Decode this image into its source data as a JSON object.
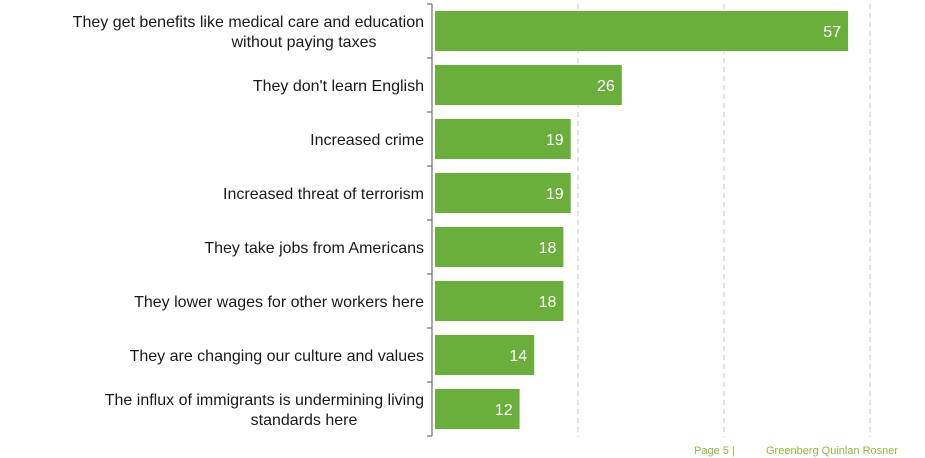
{
  "chart_data": {
    "type": "bar",
    "orientation": "horizontal",
    "categories": [
      "They get benefits like medical care and education without paying taxes",
      "They don't learn English",
      "Increased crime",
      "Increased threat of terrorism",
      "They take jobs from Americans",
      "They lower wages for other workers here",
      "They are changing our culture and values",
      "The influx of immigrants is undermining living standards here"
    ],
    "category_lines": [
      [
        "They get benefits like medical care and education",
        "without paying taxes"
      ],
      [
        "They don't learn English"
      ],
      [
        "Increased crime"
      ],
      [
        "Increased threat of terrorism"
      ],
      [
        "They take jobs from Americans"
      ],
      [
        "They lower wages for other workers here"
      ],
      [
        "They are changing our culture and values"
      ],
      [
        "The influx of immigrants is undermining living",
        "standards here"
      ]
    ],
    "values": [
      57,
      26,
      19,
      19,
      18,
      18,
      14,
      12
    ],
    "value_labels": [
      "57",
      "26",
      "19",
      "19",
      "18",
      "18",
      "14",
      "12"
    ],
    "xlim": [
      0,
      60
    ],
    "gridlines": [
      20,
      40,
      60
    ],
    "grid": true,
    "bar_color": "#6aae3c",
    "value_label_color": "#ffffff",
    "title": "",
    "xlabel": "",
    "ylabel": ""
  },
  "footer": {
    "page": "Page 5 |",
    "brand": "Greenberg Quinlan Rosner",
    "color": "#8cbd3f"
  }
}
